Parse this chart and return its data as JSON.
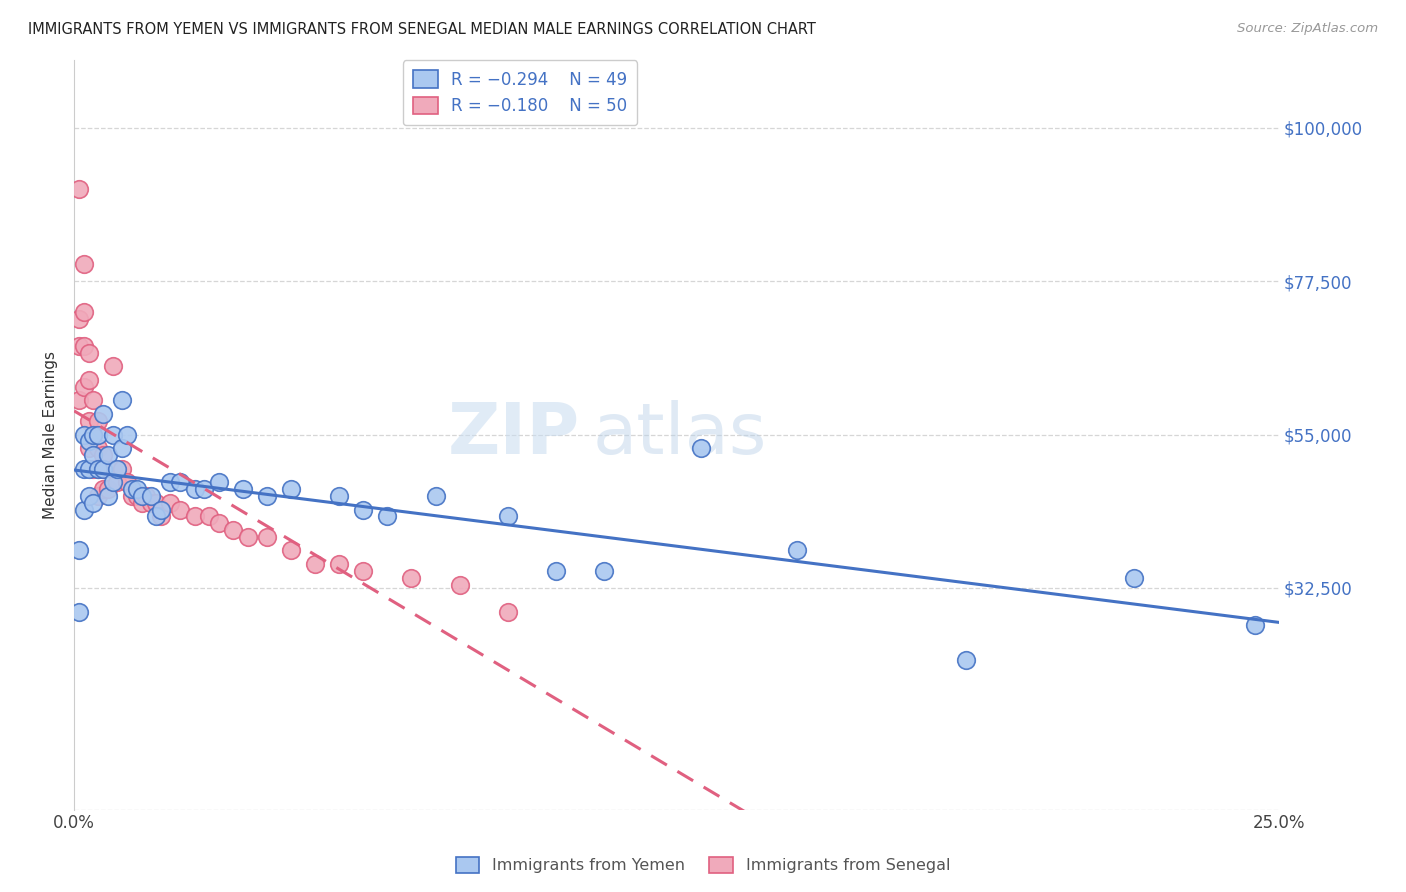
{
  "title": "IMMIGRANTS FROM YEMEN VS IMMIGRANTS FROM SENEGAL MEDIAN MALE EARNINGS CORRELATION CHART",
  "source": "Source: ZipAtlas.com",
  "ylabel": "Median Male Earnings",
  "xlim": [
    0.0,
    0.25
  ],
  "ylim": [
    0,
    110000
  ],
  "yticks": [
    0,
    32500,
    55000,
    77500,
    100000
  ],
  "ytick_labels": [
    "",
    "$32,500",
    "$55,000",
    "$77,500",
    "$100,000"
  ],
  "legend1_R": "R = −0.294",
  "legend1_N": "N = 49",
  "legend2_R": "R = −0.180",
  "legend2_N": "N = 50",
  "color_yemen": "#aac8f0",
  "color_senegal": "#f0aabb",
  "color_line_yemen": "#4472c4",
  "color_line_senegal": "#e06080",
  "color_axis_right": "#4472c4",
  "watermark_zip": "ZIP",
  "watermark_atlas": "atlas",
  "yemen_x": [
    0.001,
    0.001,
    0.002,
    0.002,
    0.002,
    0.003,
    0.003,
    0.003,
    0.004,
    0.004,
    0.004,
    0.005,
    0.005,
    0.006,
    0.006,
    0.007,
    0.007,
    0.008,
    0.008,
    0.009,
    0.01,
    0.01,
    0.011,
    0.012,
    0.013,
    0.014,
    0.016,
    0.017,
    0.018,
    0.02,
    0.022,
    0.025,
    0.027,
    0.03,
    0.035,
    0.04,
    0.045,
    0.055,
    0.06,
    0.065,
    0.075,
    0.09,
    0.1,
    0.11,
    0.13,
    0.15,
    0.185,
    0.22,
    0.245
  ],
  "yemen_y": [
    38000,
    29000,
    55000,
    50000,
    44000,
    54000,
    50000,
    46000,
    55000,
    52000,
    45000,
    55000,
    50000,
    58000,
    50000,
    52000,
    46000,
    55000,
    48000,
    50000,
    60000,
    53000,
    55000,
    47000,
    47000,
    46000,
    46000,
    43000,
    44000,
    48000,
    48000,
    47000,
    47000,
    48000,
    47000,
    46000,
    47000,
    46000,
    44000,
    43000,
    46000,
    43000,
    35000,
    35000,
    53000,
    38000,
    22000,
    34000,
    27000
  ],
  "senegal_x": [
    0.001,
    0.001,
    0.001,
    0.001,
    0.002,
    0.002,
    0.002,
    0.002,
    0.003,
    0.003,
    0.003,
    0.003,
    0.004,
    0.004,
    0.004,
    0.005,
    0.005,
    0.005,
    0.005,
    0.006,
    0.006,
    0.006,
    0.007,
    0.008,
    0.008,
    0.009,
    0.01,
    0.011,
    0.012,
    0.013,
    0.014,
    0.015,
    0.016,
    0.017,
    0.018,
    0.02,
    0.022,
    0.025,
    0.028,
    0.03,
    0.033,
    0.036,
    0.04,
    0.045,
    0.05,
    0.055,
    0.06,
    0.07,
    0.08,
    0.09
  ],
  "senegal_y": [
    91000,
    72000,
    68000,
    60000,
    80000,
    73000,
    68000,
    62000,
    67000,
    63000,
    57000,
    53000,
    60000,
    55000,
    50000,
    57000,
    53000,
    50000,
    46000,
    52000,
    50000,
    47000,
    47000,
    65000,
    50000,
    48000,
    50000,
    48000,
    46000,
    46000,
    45000,
    46000,
    45000,
    45000,
    43000,
    45000,
    44000,
    43000,
    43000,
    42000,
    41000,
    40000,
    40000,
    38000,
    36000,
    36000,
    35000,
    34000,
    33000,
    29000
  ]
}
